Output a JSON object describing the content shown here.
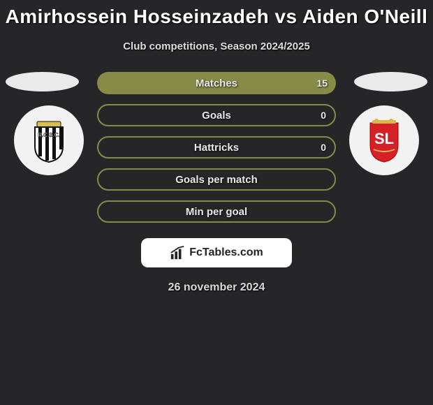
{
  "title": "Amirhossein Hosseinzadeh vs Aiden O'Neill",
  "subtitle": "Club competitions, Season 2024/2025",
  "date": "26 november 2024",
  "brand": "FcTables.com",
  "colors": {
    "background": "#262629",
    "bar_fill": "#868b47",
    "bar_border": "#868b47",
    "text_light": "#e8e8e8",
    "brand_bg": "#ffffff",
    "brand_text": "#222222"
  },
  "stats": [
    {
      "label": "Matches",
      "left_value": "",
      "right_value": "15",
      "left_pct": 0,
      "right_pct": 100
    },
    {
      "label": "Goals",
      "left_value": "",
      "right_value": "0",
      "left_pct": 0,
      "right_pct": 0
    },
    {
      "label": "Hattricks",
      "left_value": "",
      "right_value": "0",
      "left_pct": 0,
      "right_pct": 0
    },
    {
      "label": "Goals per match",
      "left_value": "",
      "right_value": "",
      "left_pct": 0,
      "right_pct": 0
    },
    {
      "label": "Min per goal",
      "left_value": "",
      "right_value": "",
      "left_pct": 0,
      "right_pct": 0
    }
  ],
  "clubs": {
    "left": {
      "name": "Sporting Charleroi"
    },
    "right": {
      "name": "Standard Liege"
    }
  }
}
